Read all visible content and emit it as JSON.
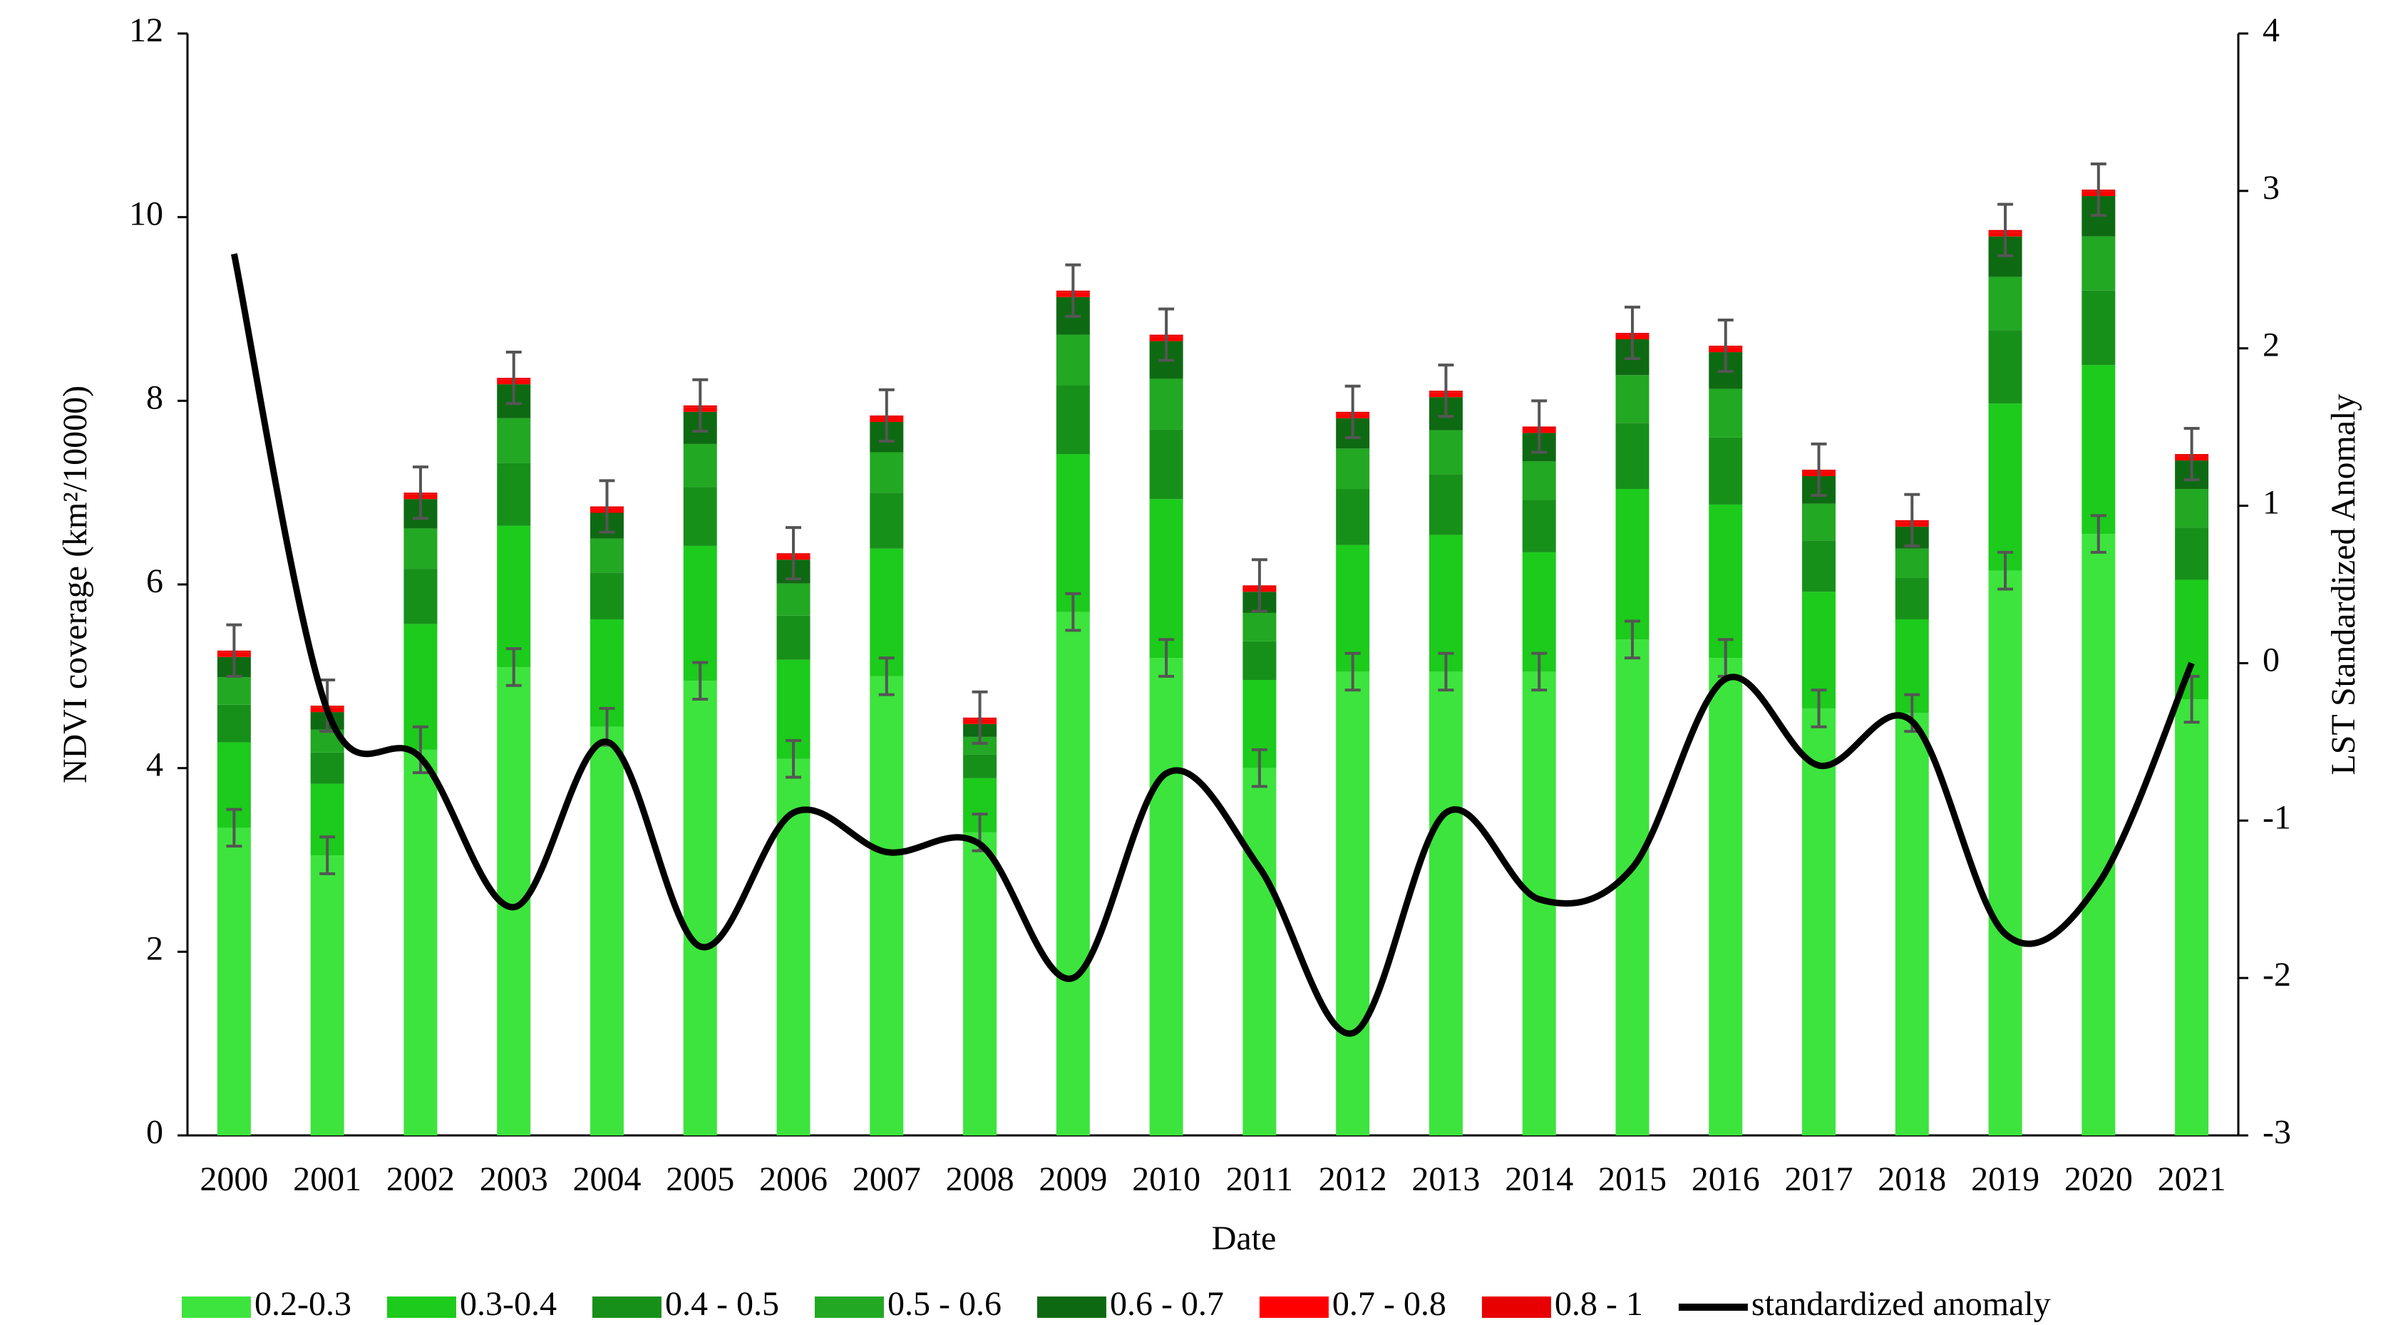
{
  "chart_data": {
    "type": "bar",
    "x_label": "Date",
    "y_label": "NDVI coverage (km²/10000)",
    "y2_label": "LST Standardized Anomaly",
    "categories": [
      "2000",
      "2001",
      "2002",
      "2003",
      "2004",
      "2005",
      "2006",
      "2007",
      "2008",
      "2009",
      "2010",
      "2011",
      "2012",
      "2013",
      "2014",
      "2015",
      "2016",
      "2017",
      "2018",
      "2019",
      "2020",
      "2021"
    ],
    "ylim": [
      0,
      12
    ],
    "yticks": [
      0,
      2,
      4,
      6,
      8,
      10,
      12
    ],
    "y2lim": [
      -3,
      4
    ],
    "y2ticks": [
      -3,
      -2,
      -1,
      0,
      1,
      2,
      3,
      4
    ],
    "stacked": true,
    "series": [
      {
        "name": "0.2-0.3",
        "color": "#3de43d",
        "values": [
          3.35,
          3.05,
          4.2,
          5.1,
          4.45,
          4.95,
          4.1,
          5.0,
          3.3,
          5.7,
          5.2,
          4.0,
          5.05,
          5.05,
          5.05,
          5.4,
          5.2,
          4.65,
          4.6,
          6.15,
          6.55,
          4.75
        ],
        "errors": [
          0.2,
          0.2,
          0.25,
          0.2,
          0.2,
          0.2,
          0.2,
          0.2,
          0.2,
          0.2,
          0.2,
          0.2,
          0.2,
          0.2,
          0.2,
          0.2,
          0.2,
          0.2,
          0.2,
          0.2,
          0.2,
          0.25
        ]
      },
      {
        "name": "0.3-0.4",
        "color": "#1ccb1c",
        "values": [
          0.93,
          0.78,
          1.37,
          1.54,
          1.17,
          1.47,
          1.08,
          1.39,
          0.59,
          1.72,
          1.73,
          0.96,
          1.38,
          1.49,
          1.3,
          1.64,
          1.67,
          1.27,
          1.02,
          1.82,
          1.84,
          1.3
        ]
      },
      {
        "name": "0.4 - 0.5",
        "color": "#17901a",
        "values": [
          0.41,
          0.34,
          0.6,
          0.68,
          0.51,
          0.64,
          0.48,
          0.61,
          0.26,
          0.75,
          0.76,
          0.42,
          0.61,
          0.66,
          0.57,
          0.72,
          0.73,
          0.56,
          0.45,
          0.8,
          0.81,
          0.57
        ]
      },
      {
        "name": "0.5 - 0.6",
        "color": "#22a822",
        "values": [
          0.3,
          0.25,
          0.44,
          0.49,
          0.37,
          0.47,
          0.35,
          0.44,
          0.19,
          0.55,
          0.55,
          0.31,
          0.44,
          0.48,
          0.42,
          0.52,
          0.53,
          0.4,
          0.32,
          0.58,
          0.59,
          0.42
        ]
      },
      {
        "name": "0.6 - 0.7",
        "color": "#0e6a12",
        "values": [
          0.22,
          0.19,
          0.32,
          0.37,
          0.28,
          0.35,
          0.26,
          0.33,
          0.14,
          0.41,
          0.41,
          0.23,
          0.33,
          0.36,
          0.31,
          0.39,
          0.4,
          0.3,
          0.24,
          0.44,
          0.44,
          0.31
        ]
      },
      {
        "name": "0.7 - 0.8",
        "color": "#ff0000",
        "values": [
          0.05,
          0.05,
          0.05,
          0.05,
          0.05,
          0.05,
          0.05,
          0.05,
          0.05,
          0.05,
          0.05,
          0.05,
          0.05,
          0.05,
          0.05,
          0.05,
          0.05,
          0.05,
          0.05,
          0.05,
          0.05,
          0.05
        ]
      },
      {
        "name": "0.8 - 1",
        "color": "#e80000",
        "values": [
          0.02,
          0.02,
          0.02,
          0.02,
          0.02,
          0.02,
          0.02,
          0.02,
          0.02,
          0.02,
          0.02,
          0.02,
          0.02,
          0.02,
          0.02,
          0.02,
          0.02,
          0.02,
          0.02,
          0.02,
          0.02,
          0.02
        ],
        "errors": [
          0.28,
          0.28,
          0.28,
          0.28,
          0.28,
          0.28,
          0.28,
          0.28,
          0.28,
          0.28,
          0.28,
          0.28,
          0.28,
          0.28,
          0.28,
          0.28,
          0.28,
          0.28,
          0.28,
          0.28,
          0.28,
          0.28
        ]
      },
      {
        "name": "standardized anomaly",
        "type": "line",
        "axis": "y2",
        "color": "#000000",
        "smooth": true,
        "values": [
          2.6,
          -0.3,
          -0.6,
          -1.55,
          -0.5,
          -1.8,
          -0.95,
          -1.2,
          -1.15,
          -2.0,
          -0.7,
          -1.3,
          -2.35,
          -0.95,
          -1.5,
          -1.3,
          -0.1,
          -0.65,
          -0.37,
          -1.72,
          -1.4,
          0.0
        ]
      }
    ]
  }
}
